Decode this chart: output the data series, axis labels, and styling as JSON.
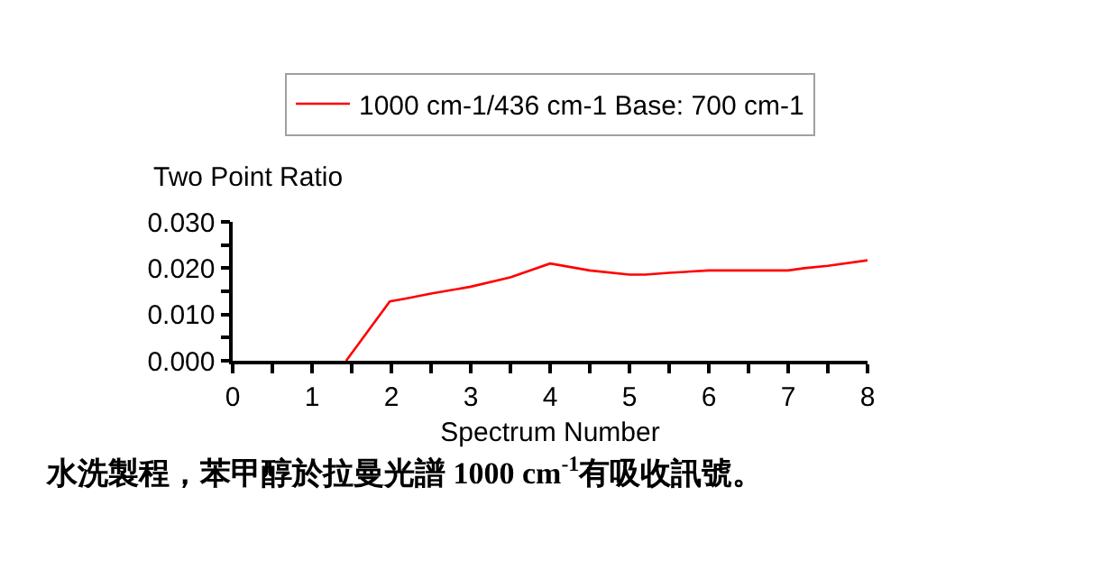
{
  "chart_data": {
    "type": "line",
    "ylabel": "Two Point Ratio",
    "xlabel": "Spectrum Number",
    "x": [
      1.43,
      1.98,
      2.2,
      2.5,
      3.0,
      3.5,
      4.0,
      4.5,
      5.0,
      5.2,
      5.5,
      6.0,
      7.0,
      7.2,
      7.5,
      8.0
    ],
    "series": [
      {
        "name": "1000 cm-1/436 cm-1 Base: 700 cm-1",
        "color": "#ff0000",
        "values": [
          0.0,
          0.0128,
          0.0135,
          0.0145,
          0.016,
          0.018,
          0.021,
          0.0195,
          0.0186,
          0.0186,
          0.019,
          0.0195,
          0.0195,
          0.02,
          0.0205,
          0.0217
        ]
      }
    ],
    "xlim": [
      0,
      8
    ],
    "xticks": [
      0,
      {
        "value": 0.5,
        "label": null
      },
      1,
      {
        "value": 1.5,
        "label": null
      },
      2,
      {
        "value": 2.5,
        "label": null
      },
      3,
      {
        "value": 3.5,
        "label": null
      },
      4,
      {
        "value": 4.5,
        "label": null
      },
      5,
      {
        "value": 5.5,
        "label": null
      },
      6,
      {
        "value": 6.5,
        "label": null
      },
      7,
      {
        "value": 7.5,
        "label": null
      },
      8
    ],
    "ylim": [
      0,
      0.03
    ],
    "yticks": [
      {
        "value": 0,
        "label": "0.000"
      },
      {
        "value": 0.005,
        "label": null
      },
      {
        "value": 0.01,
        "label": "0.010"
      },
      {
        "value": 0.015,
        "label": null
      },
      {
        "value": 0.02,
        "label": "0.020"
      },
      {
        "value": 0.025,
        "label": null
      },
      {
        "value": 0.03,
        "label": "0.030"
      }
    ],
    "legend": "top",
    "marker": "none",
    "line_style": "solid",
    "annotations": [
      "水洗製程，苯甲醇於拉曼光譜 1000 cm$^{-1}$有吸收訊號。"
    ]
  }
}
